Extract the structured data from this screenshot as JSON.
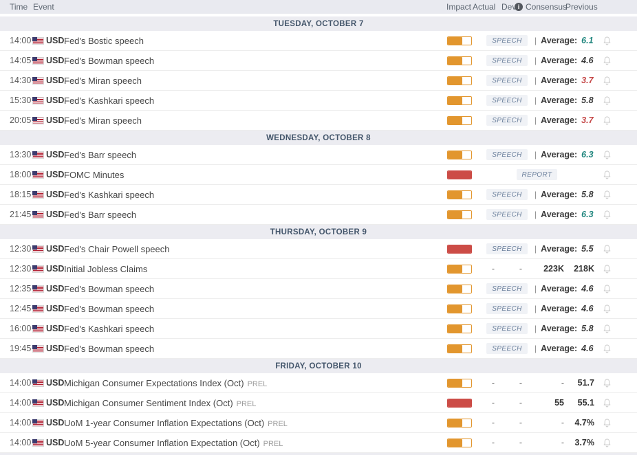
{
  "header": {
    "time": "Time",
    "event": "Event",
    "impact": "Impact",
    "actual": "Actual",
    "dev": "Dev",
    "dev_info_glyph": "i",
    "consensus": "Consensus",
    "previous": "Previous"
  },
  "ui": {
    "pipe": "|"
  },
  "colors": {
    "impact_medium": "#e2962e",
    "impact_high": "#cc4c46",
    "average_positive": "#1f857d",
    "average_negative": "#c44545",
    "average_neutral": "#3b3b3b",
    "badge_text": "#6a7f9b",
    "date_text": "#44566b"
  },
  "days": [
    {
      "date": "TUESDAY, OCTOBER 7",
      "events": [
        {
          "time": "14:00",
          "currency": "USD",
          "name": "Fed's Bostic speech",
          "suffix": "",
          "impact": "medium",
          "kind": "speech",
          "badge": "SPEECH",
          "average_label": "Average:",
          "average": "6.1",
          "average_color": "positive"
        },
        {
          "time": "14:05",
          "currency": "USD",
          "name": "Fed's Bowman speech",
          "suffix": "",
          "impact": "medium",
          "kind": "speech",
          "badge": "SPEECH",
          "average_label": "Average:",
          "average": "4.6",
          "average_color": "neutral"
        },
        {
          "time": "14:30",
          "currency": "USD",
          "name": "Fed's Miran speech",
          "suffix": "",
          "impact": "medium",
          "kind": "speech",
          "badge": "SPEECH",
          "average_label": "Average:",
          "average": "3.7",
          "average_color": "negative"
        },
        {
          "time": "15:30",
          "currency": "USD",
          "name": "Fed's Kashkari speech",
          "suffix": "",
          "impact": "medium",
          "kind": "speech",
          "badge": "SPEECH",
          "average_label": "Average:",
          "average": "5.8",
          "average_color": "neutral"
        },
        {
          "time": "20:05",
          "currency": "USD",
          "name": "Fed's Miran speech",
          "suffix": "",
          "impact": "medium",
          "kind": "speech",
          "badge": "SPEECH",
          "average_label": "Average:",
          "average": "3.7",
          "average_color": "negative"
        }
      ]
    },
    {
      "date": "WEDNESDAY, OCTOBER 8",
      "events": [
        {
          "time": "13:30",
          "currency": "USD",
          "name": "Fed's Barr speech",
          "suffix": "",
          "impact": "medium",
          "kind": "speech",
          "badge": "SPEECH",
          "average_label": "Average:",
          "average": "6.3",
          "average_color": "positive"
        },
        {
          "time": "18:00",
          "currency": "USD",
          "name": "FOMC Minutes",
          "suffix": "",
          "impact": "high",
          "kind": "report",
          "badge": "REPORT"
        },
        {
          "time": "18:15",
          "currency": "USD",
          "name": "Fed's Kashkari speech",
          "suffix": "",
          "impact": "medium",
          "kind": "speech",
          "badge": "SPEECH",
          "average_label": "Average:",
          "average": "5.8",
          "average_color": "neutral"
        },
        {
          "time": "21:45",
          "currency": "USD",
          "name": "Fed's Barr speech",
          "suffix": "",
          "impact": "medium",
          "kind": "speech",
          "badge": "SPEECH",
          "average_label": "Average:",
          "average": "6.3",
          "average_color": "positive"
        }
      ]
    },
    {
      "date": "THURSDAY, OCTOBER 9",
      "events": [
        {
          "time": "12:30",
          "currency": "USD",
          "name": "Fed's Chair Powell speech",
          "suffix": "",
          "impact": "high",
          "kind": "speech",
          "badge": "SPEECH",
          "average_label": "Average:",
          "average": "5.5",
          "average_color": "neutral"
        },
        {
          "time": "12:30",
          "currency": "USD",
          "name": "Initial Jobless Claims",
          "suffix": "",
          "impact": "medium",
          "kind": "data",
          "actual": "-",
          "dev": "-",
          "consensus": "223K",
          "previous": "218K"
        },
        {
          "time": "12:35",
          "currency": "USD",
          "name": "Fed's Bowman speech",
          "suffix": "",
          "impact": "medium",
          "kind": "speech",
          "badge": "SPEECH",
          "average_label": "Average:",
          "average": "4.6",
          "average_color": "neutral"
        },
        {
          "time": "12:45",
          "currency": "USD",
          "name": "Fed's Bowman speech",
          "suffix": "",
          "impact": "medium",
          "kind": "speech",
          "badge": "SPEECH",
          "average_label": "Average:",
          "average": "4.6",
          "average_color": "neutral"
        },
        {
          "time": "16:00",
          "currency": "USD",
          "name": "Fed's Kashkari speech",
          "suffix": "",
          "impact": "medium",
          "kind": "speech",
          "badge": "SPEECH",
          "average_label": "Average:",
          "average": "5.8",
          "average_color": "neutral"
        },
        {
          "time": "19:45",
          "currency": "USD",
          "name": "Fed's Bowman speech",
          "suffix": "",
          "impact": "medium",
          "kind": "speech",
          "badge": "SPEECH",
          "average_label": "Average:",
          "average": "4.6",
          "average_color": "neutral"
        }
      ]
    },
    {
      "date": "FRIDAY, OCTOBER 10",
      "events": [
        {
          "time": "14:00",
          "currency": "USD",
          "name": "Michigan Consumer Expectations Index (Oct)",
          "suffix": "PREL",
          "impact": "medium",
          "kind": "data",
          "actual": "-",
          "dev": "-",
          "consensus": "-",
          "previous": "51.7"
        },
        {
          "time": "14:00",
          "currency": "USD",
          "name": "Michigan Consumer Sentiment Index (Oct)",
          "suffix": "PREL",
          "impact": "high",
          "kind": "data",
          "actual": "-",
          "dev": "-",
          "consensus": "55",
          "previous": "55.1"
        },
        {
          "time": "14:00",
          "currency": "USD",
          "name": "UoM 1-year Consumer Inflation Expectations (Oct)",
          "suffix": "PREL",
          "impact": "medium",
          "kind": "data",
          "actual": "-",
          "dev": "-",
          "consensus": "-",
          "previous": "4.7%"
        },
        {
          "time": "14:00",
          "currency": "USD",
          "name": "UoM 5-year Consumer Inflation Expectation (Oct)",
          "suffix": "PREL",
          "impact": "medium",
          "kind": "data",
          "actual": "-",
          "dev": "-",
          "consensus": "-",
          "previous": "3.7%"
        }
      ]
    }
  ]
}
